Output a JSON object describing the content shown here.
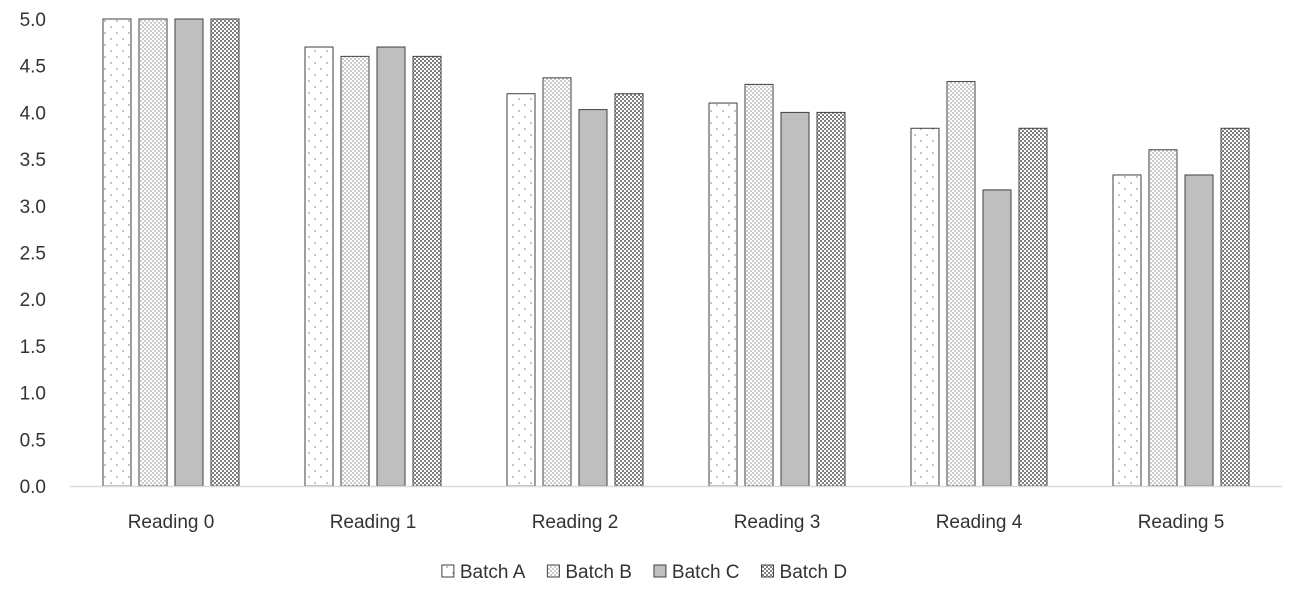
{
  "chart_data": {
    "type": "bar",
    "title": "",
    "xlabel": "",
    "ylabel": "",
    "ylim": [
      0,
      5
    ],
    "yticks": [
      "0.0",
      "0.5",
      "1.0",
      "1.5",
      "2.0",
      "2.5",
      "3.0",
      "3.5",
      "4.0",
      "4.5",
      "5.0"
    ],
    "grid": false,
    "legend_position": "bottom",
    "categories": [
      "Reading 0",
      "Reading 1",
      "Reading 2",
      "Reading 3",
      "Reading 4",
      "Reading 5"
    ],
    "series": [
      {
        "name": "Batch A",
        "pattern": "sparse-dots",
        "values": [
          5.0,
          4.7,
          4.2,
          4.1,
          3.83,
          3.33
        ]
      },
      {
        "name": "Batch B",
        "pattern": "dense-dots",
        "values": [
          5.0,
          4.6,
          4.37,
          4.3,
          4.33,
          3.6
        ]
      },
      {
        "name": "Batch C",
        "pattern": "solid-gray",
        "values": [
          5.0,
          4.7,
          4.03,
          4.0,
          3.17,
          3.33
        ]
      },
      {
        "name": "Batch D",
        "pattern": "checkerboard",
        "values": [
          5.0,
          4.6,
          4.2,
          4.0,
          3.83,
          3.83
        ]
      }
    ],
    "colors": {
      "bar_outline": "#404040",
      "solid_fill": "#bfbfbf",
      "pattern_ink": "#7f7f7f",
      "axis_line": "#d9d9d9",
      "text": "#333333"
    }
  }
}
